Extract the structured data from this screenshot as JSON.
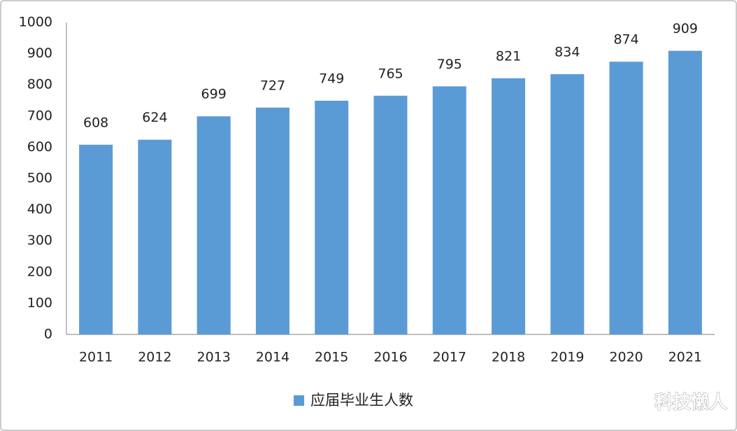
{
  "chart_data": {
    "type": "bar",
    "categories": [
      "2011",
      "2012",
      "2013",
      "2014",
      "2015",
      "2016",
      "2017",
      "2018",
      "2019",
      "2020",
      "2021"
    ],
    "series": [
      {
        "name": "应届毕业生人数",
        "color": "#5b9bd5",
        "values": [
          608,
          624,
          699,
          727,
          749,
          765,
          795,
          821,
          834,
          874,
          909
        ]
      }
    ],
    "ylim": [
      0,
      1000
    ],
    "yticks": [
      0,
      100,
      200,
      300,
      400,
      500,
      600,
      700,
      800,
      900,
      1000
    ],
    "grid": false,
    "legend": "bottom",
    "watermark": "科技懒人"
  }
}
